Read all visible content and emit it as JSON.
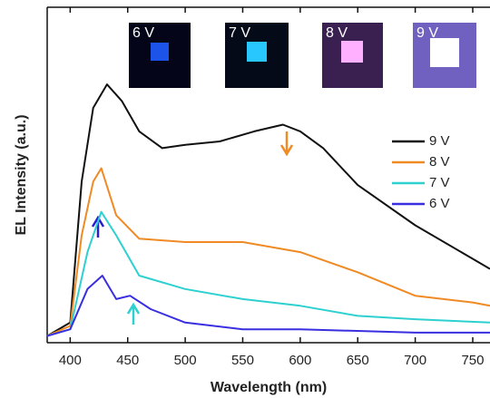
{
  "chart_data": {
    "type": "line",
    "x_label": "Wavelength (nm)",
    "y_label": "EL Intensity (a.u.)",
    "xlim": [
      380,
      765
    ],
    "ylim": [
      0,
      100
    ],
    "xticks": [
      400,
      450,
      500,
      550,
      600,
      650,
      700,
      750
    ],
    "annotations": [
      "6 V",
      "7 V",
      "8 V",
      "9 V"
    ],
    "series": [
      {
        "name": "9 V",
        "color": "#111111",
        "x": [
          380,
          400,
          410,
          420,
          432,
          445,
          460,
          480,
          500,
          530,
          560,
          585,
          600,
          620,
          650,
          700,
          750,
          765
        ],
        "values": [
          2,
          6,
          48,
          70,
          77,
          72,
          63,
          58,
          59,
          60,
          63,
          65,
          63,
          58,
          47,
          35,
          25,
          22
        ]
      },
      {
        "name": "8 V",
        "color": "#f08a24",
        "x": [
          380,
          400,
          410,
          420,
          427,
          440,
          460,
          500,
          550,
          600,
          650,
          700,
          750,
          765
        ],
        "values": [
          2,
          5,
          32,
          48,
          52,
          38,
          31,
          30,
          30,
          27,
          21,
          14,
          12,
          11
        ]
      },
      {
        "name": "7 V",
        "color": "#2ed0d0",
        "x": [
          380,
          400,
          415,
          427,
          440,
          460,
          500,
          550,
          600,
          650,
          700,
          765
        ],
        "values": [
          2,
          4,
          27,
          39,
          32,
          20,
          16,
          13,
          11,
          8,
          7,
          6
        ]
      },
      {
        "name": "6 V",
        "color": "#3a2fe0",
        "x": [
          380,
          400,
          415,
          428,
          440,
          452,
          470,
          500,
          550,
          600,
          700,
          765
        ],
        "values": [
          2,
          4,
          16,
          20,
          13,
          14,
          10,
          6,
          4,
          4,
          3,
          3
        ]
      }
    ]
  }
}
